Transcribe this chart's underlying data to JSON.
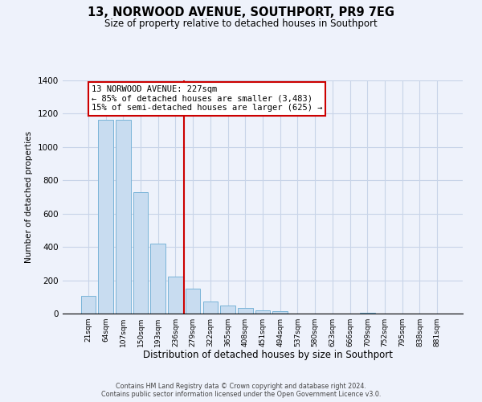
{
  "title": "13, NORWOOD AVENUE, SOUTHPORT, PR9 7EG",
  "subtitle": "Size of property relative to detached houses in Southport",
  "xlabel": "Distribution of detached houses by size in Southport",
  "ylabel": "Number of detached properties",
  "bar_labels": [
    "21sqm",
    "64sqm",
    "107sqm",
    "150sqm",
    "193sqm",
    "236sqm",
    "279sqm",
    "322sqm",
    "365sqm",
    "408sqm",
    "451sqm",
    "494sqm",
    "537sqm",
    "580sqm",
    "623sqm",
    "666sqm",
    "709sqm",
    "752sqm",
    "795sqm",
    "838sqm",
    "881sqm"
  ],
  "bar_values": [
    107,
    1163,
    1163,
    730,
    420,
    220,
    148,
    72,
    50,
    33,
    20,
    13,
    0,
    0,
    0,
    0,
    5,
    0,
    0,
    0,
    0
  ],
  "bar_color": "#c8dcf0",
  "bar_edge_color": "#7ab4d8",
  "vline_x": 5.5,
  "vline_color": "#cc0000",
  "annotation_title": "13 NORWOOD AVENUE: 227sqm",
  "annotation_line1": "← 85% of detached houses are smaller (3,483)",
  "annotation_line2": "15% of semi-detached houses are larger (625) →",
  "annotation_box_color": "white",
  "annotation_box_edge": "#cc0000",
  "ylim": [
    0,
    1400
  ],
  "yticks": [
    0,
    200,
    400,
    600,
    800,
    1000,
    1200,
    1400
  ],
  "footer_line1": "Contains HM Land Registry data © Crown copyright and database right 2024.",
  "footer_line2": "Contains public sector information licensed under the Open Government Licence v3.0.",
  "background_color": "#eef2fb",
  "grid_color": "#c8d4e8"
}
